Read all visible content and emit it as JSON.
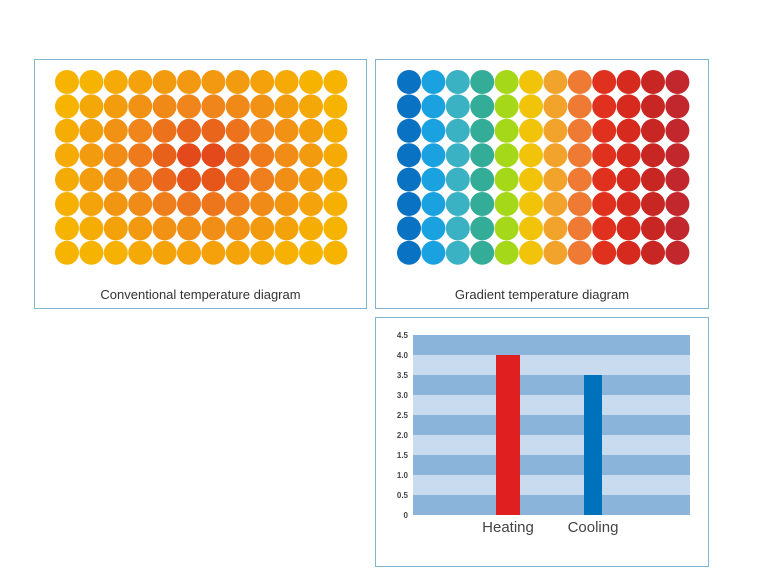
{
  "panels": {
    "conventional": {
      "caption": "Conventional temperature diagram",
      "grid": {
        "columns": 12,
        "rows": 8
      },
      "colors": {
        "edge": "#f6b400",
        "mid": "#f0841c",
        "hot": "#e03a1a"
      }
    },
    "gradient": {
      "caption": "Gradient temperature diagram",
      "grid": {
        "columns": 12,
        "rows": 8
      },
      "column_colors": [
        "#0a72c2",
        "#1aa2e0",
        "#3bb2c4",
        "#34ad98",
        "#a6d81a",
        "#f1c40a",
        "#f2a32b",
        "#ef7a33",
        "#e0311f",
        "#d62a1f",
        "#c82622",
        "#c1272d"
      ]
    }
  },
  "chart_data": {
    "type": "bar",
    "categories": [
      "Heating",
      "Cooling"
    ],
    "values": [
      4.0,
      3.5
    ],
    "colors": [
      "#e02020",
      "#0072bc"
    ],
    "ylim": [
      0,
      4.5
    ],
    "yticks": [
      "0",
      "0.5",
      "1.0",
      "1.5",
      "2.0",
      "2.5",
      "3.0",
      "3.5",
      "4.0",
      "4.5"
    ],
    "background_stripes": [
      "#8ab4da",
      "#c9dcef"
    ],
    "title": "",
    "xlabel": "",
    "ylabel": "",
    "grid": false,
    "legend": "none"
  }
}
